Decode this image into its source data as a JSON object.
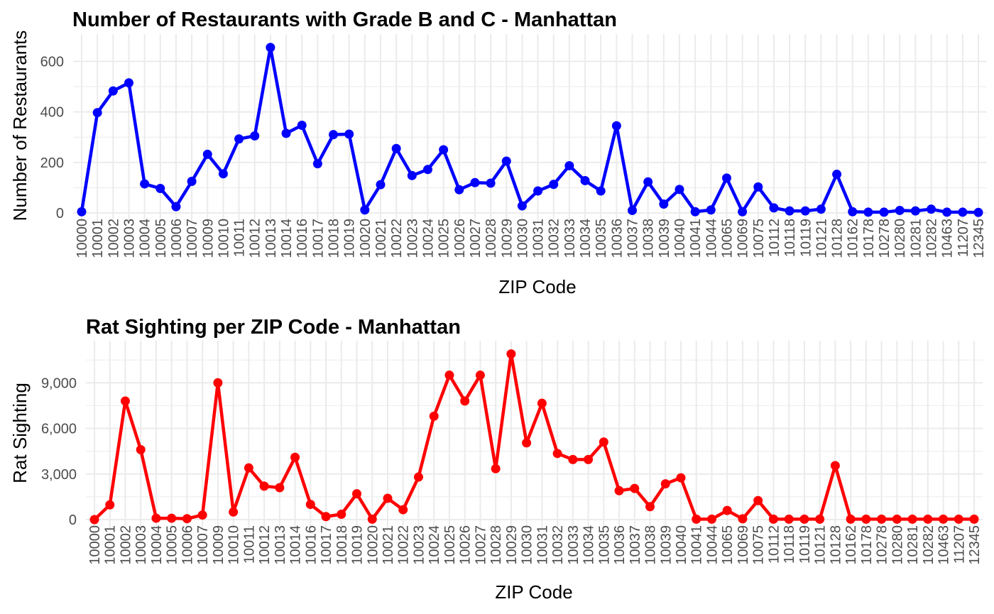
{
  "chart_data": [
    {
      "type": "line",
      "title": "Number of Restaurants with Grade B and C - Manhattan",
      "xlabel": "ZIP Code",
      "ylabel": "Number of Restaurants",
      "ylim": [
        0,
        680
      ],
      "yticks": [
        0,
        200,
        400,
        600
      ],
      "ytick_labels": [
        "0",
        "200",
        "400",
        "600"
      ],
      "grid": true,
      "color": "#0000ff",
      "categories": [
        "10000",
        "10001",
        "10002",
        "10003",
        "10004",
        "10005",
        "10006",
        "10007",
        "10009",
        "10010",
        "10011",
        "10012",
        "10013",
        "10014",
        "10016",
        "10017",
        "10018",
        "10019",
        "10020",
        "10021",
        "10022",
        "10023",
        "10024",
        "10025",
        "10026",
        "10027",
        "10028",
        "10029",
        "10030",
        "10031",
        "10032",
        "10033",
        "10034",
        "10035",
        "10036",
        "10037",
        "10038",
        "10039",
        "10040",
        "10041",
        "10044",
        "10065",
        "10069",
        "10075",
        "10112",
        "10118",
        "10119",
        "10121",
        "10128",
        "10162",
        "10178",
        "10278",
        "10280",
        "10281",
        "10282",
        "10463",
        "11207",
        "12345"
      ],
      "series": [
        {
          "values": [
            5,
            397,
            483,
            515,
            115,
            97,
            25,
            125,
            232,
            155,
            293,
            305,
            655,
            315,
            347,
            195,
            310,
            312,
            12,
            112,
            255,
            148,
            172,
            250,
            92,
            120,
            118,
            205,
            28,
            87,
            113,
            187,
            128,
            87,
            345,
            10,
            123,
            35,
            93,
            5,
            12,
            138,
            5,
            103,
            20,
            8,
            8,
            15,
            153,
            5,
            3,
            3,
            10,
            8,
            15,
            3,
            3,
            2
          ]
        }
      ]
    },
    {
      "type": "line",
      "title": "Rat Sighting per ZIP Code - Manhattan",
      "xlabel": "ZIP Code",
      "ylabel": "Rat Sighting",
      "ylim": [
        0,
        11300
      ],
      "yticks": [
        0,
        3000,
        6000,
        9000
      ],
      "ytick_labels": [
        "0",
        "3,000",
        "6,000",
        "9,000"
      ],
      "grid": true,
      "color": "#ff0000",
      "categories": [
        "10000",
        "10001",
        "10002",
        "10003",
        "10004",
        "10005",
        "10006",
        "10007",
        "10009",
        "10010",
        "10011",
        "10012",
        "10013",
        "10014",
        "10016",
        "10017",
        "10018",
        "10019",
        "10020",
        "10021",
        "10022",
        "10023",
        "10024",
        "10025",
        "10026",
        "10027",
        "10028",
        "10029",
        "10030",
        "10031",
        "10032",
        "10033",
        "10034",
        "10035",
        "10036",
        "10037",
        "10038",
        "10039",
        "10040",
        "10041",
        "10044",
        "10065",
        "10069",
        "10075",
        "10112",
        "10118",
        "10119",
        "10121",
        "10128",
        "10162",
        "10178",
        "10278",
        "10280",
        "10281",
        "10282",
        "10463",
        "11207",
        "12345"
      ],
      "series": [
        {
          "values": [
            0,
            970,
            7800,
            4600,
            90,
            90,
            60,
            300,
            9000,
            500,
            3400,
            2200,
            2100,
            4100,
            1000,
            200,
            350,
            1700,
            30,
            1400,
            650,
            2800,
            6800,
            9500,
            7800,
            9500,
            3350,
            10900,
            5050,
            7650,
            4350,
            3950,
            3950,
            5100,
            1900,
            2050,
            850,
            2350,
            2750,
            30,
            30,
            600,
            50,
            1250,
            30,
            30,
            30,
            30,
            3550,
            30,
            30,
            30,
            30,
            30,
            30,
            30,
            30,
            30
          ]
        }
      ]
    }
  ]
}
